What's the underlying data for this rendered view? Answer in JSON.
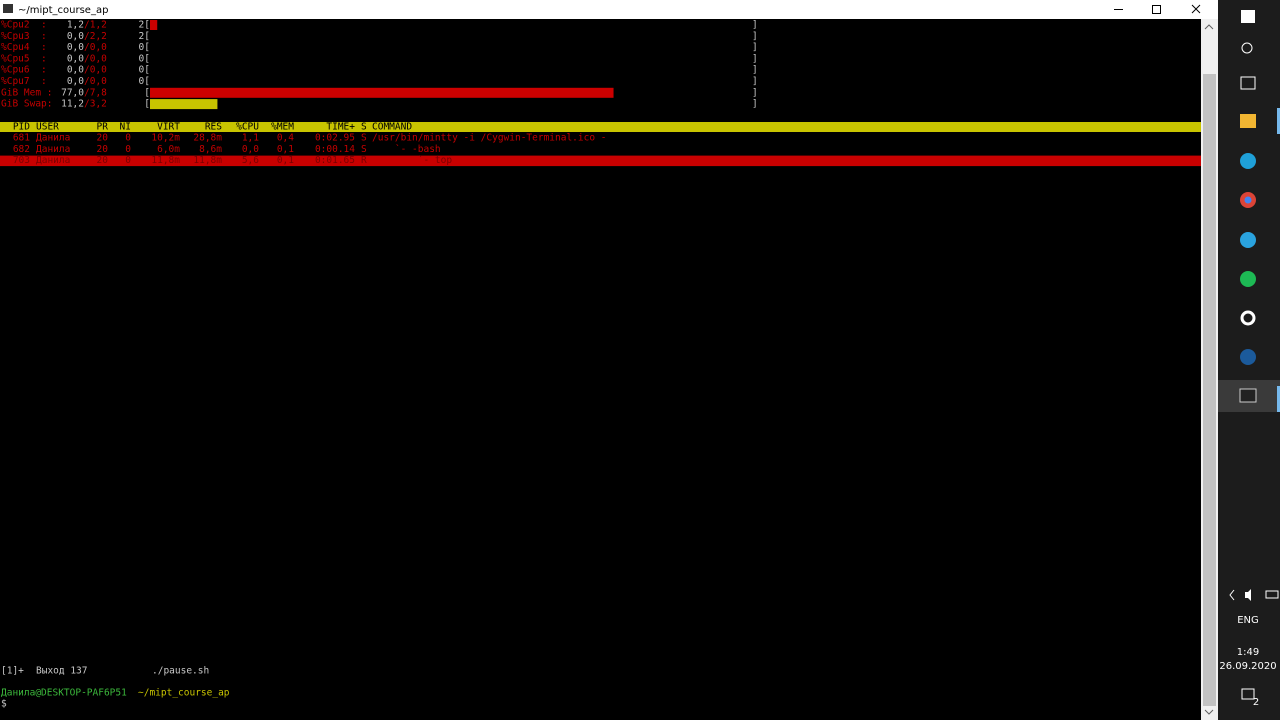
{
  "window": {
    "title": "~/mipt_course_ap"
  },
  "meters": [
    {
      "label": "%Cpu2  :",
      "value": 1.2,
      "value_label": "1,2",
      "total": "/1,2",
      "scale": "2[",
      "end": "]",
      "color": "#cc0000"
    },
    {
      "label": "%Cpu3  :",
      "value": 0.0,
      "value_label": "0,0",
      "total": "/2,2",
      "scale": "2[",
      "end": "]",
      "color": "#cc0000"
    },
    {
      "label": "%Cpu4  :",
      "value": 0.0,
      "value_label": "0,0",
      "total": "/0,0",
      "scale": "0[",
      "end": "]",
      "color": "#cc0000"
    },
    {
      "label": "%Cpu5  :",
      "value": 0.0,
      "value_label": "0,0",
      "total": "/0,0",
      "scale": "0[",
      "end": "]",
      "color": "#cc0000"
    },
    {
      "label": "%Cpu6  :",
      "value": 0.0,
      "value_label": "0,0",
      "total": "/0,0",
      "scale": "0[",
      "end": "]",
      "color": "#cc0000"
    },
    {
      "label": "%Cpu7  :",
      "value": 0.0,
      "value_label": "0,0",
      "total": "/0,0",
      "scale": "0[",
      "end": "]",
      "color": "#cc0000"
    },
    {
      "label": "GiB Mem :",
      "value": 77.0,
      "value_label": "77,0",
      "total": "/7,8",
      "scale": "[",
      "end": "]",
      "color": "#cc0000"
    },
    {
      "label": "GiB Swap:",
      "value": 11.2,
      "value_label": "11,2",
      "total": "/3,2",
      "scale": "[",
      "end": "]",
      "color": "#c8c400"
    }
  ],
  "table": {
    "columns": [
      "PID",
      "USER",
      "PR",
      "NI",
      "VIRT",
      "RES",
      "%CPU",
      "%MEM",
      "TIME+",
      "S",
      "COMMAND"
    ],
    "rows": [
      [
        "681",
        "Данила",
        "20",
        "0",
        "10,2m",
        "28,8m",
        "1,1",
        "0,4",
        "0:02.95",
        "S",
        "/usr/bin/mintty -i /Cygwin-Terminal.ico -"
      ],
      [
        "682",
        "Данила",
        "20",
        "0",
        "6,0m",
        "8,6m",
        "0,0",
        "0,1",
        "0:00.14",
        "S",
        "    `- -bash"
      ],
      [
        "703",
        "Данила",
        "20",
        "0",
        "11,8m",
        "11,8m",
        "5,6",
        "0,1",
        "0:01.65",
        "R",
        "        `- top"
      ]
    ]
  },
  "job": {
    "id": "[1]+",
    "status": "Выход 137",
    "command": "./pause.sh"
  },
  "prompt": {
    "user_host": "Данила@DESKTOP-PAF6P51",
    "path": "~/mipt_course_ap",
    "symbol": "$"
  },
  "taskbar": {
    "language": "ENG",
    "time": "1:49",
    "date": "26.09.2020",
    "notifications": "2"
  }
}
